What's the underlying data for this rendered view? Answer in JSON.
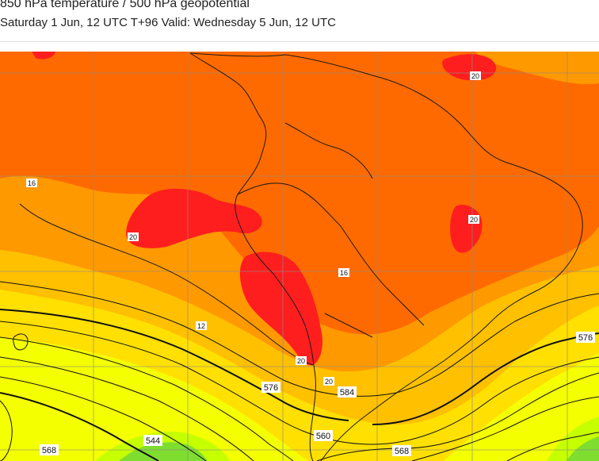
{
  "header": {
    "title": "850 hPa temperature / 500 hPa geopotential",
    "subtitle": "Saturday 1 Jun, 12 UTC T+96 Valid: Wednesday 5 Jun, 12 UTC"
  },
  "colors": {
    "temp_22_plus": "#ff1e1e",
    "temp_18_22": "#ff6a00",
    "temp_14_18": "#ff9900",
    "temp_10_14": "#ffc000",
    "temp_6_10": "#ffe000",
    "temp_2_6": "#f4ff00",
    "temp_0_2": "#c6ff00",
    "temp_cold": "#7fdd30",
    "contour": "#111111",
    "coast": "#1a1a1a",
    "grid": "#8a8a8a"
  },
  "temperature_labels": [
    "16",
    "20",
    "20",
    "12",
    "16",
    "20",
    "20",
    "20"
  ],
  "geopotential_labels": [
    "576",
    "584",
    "576",
    "568",
    "560",
    "544",
    "568"
  ]
}
